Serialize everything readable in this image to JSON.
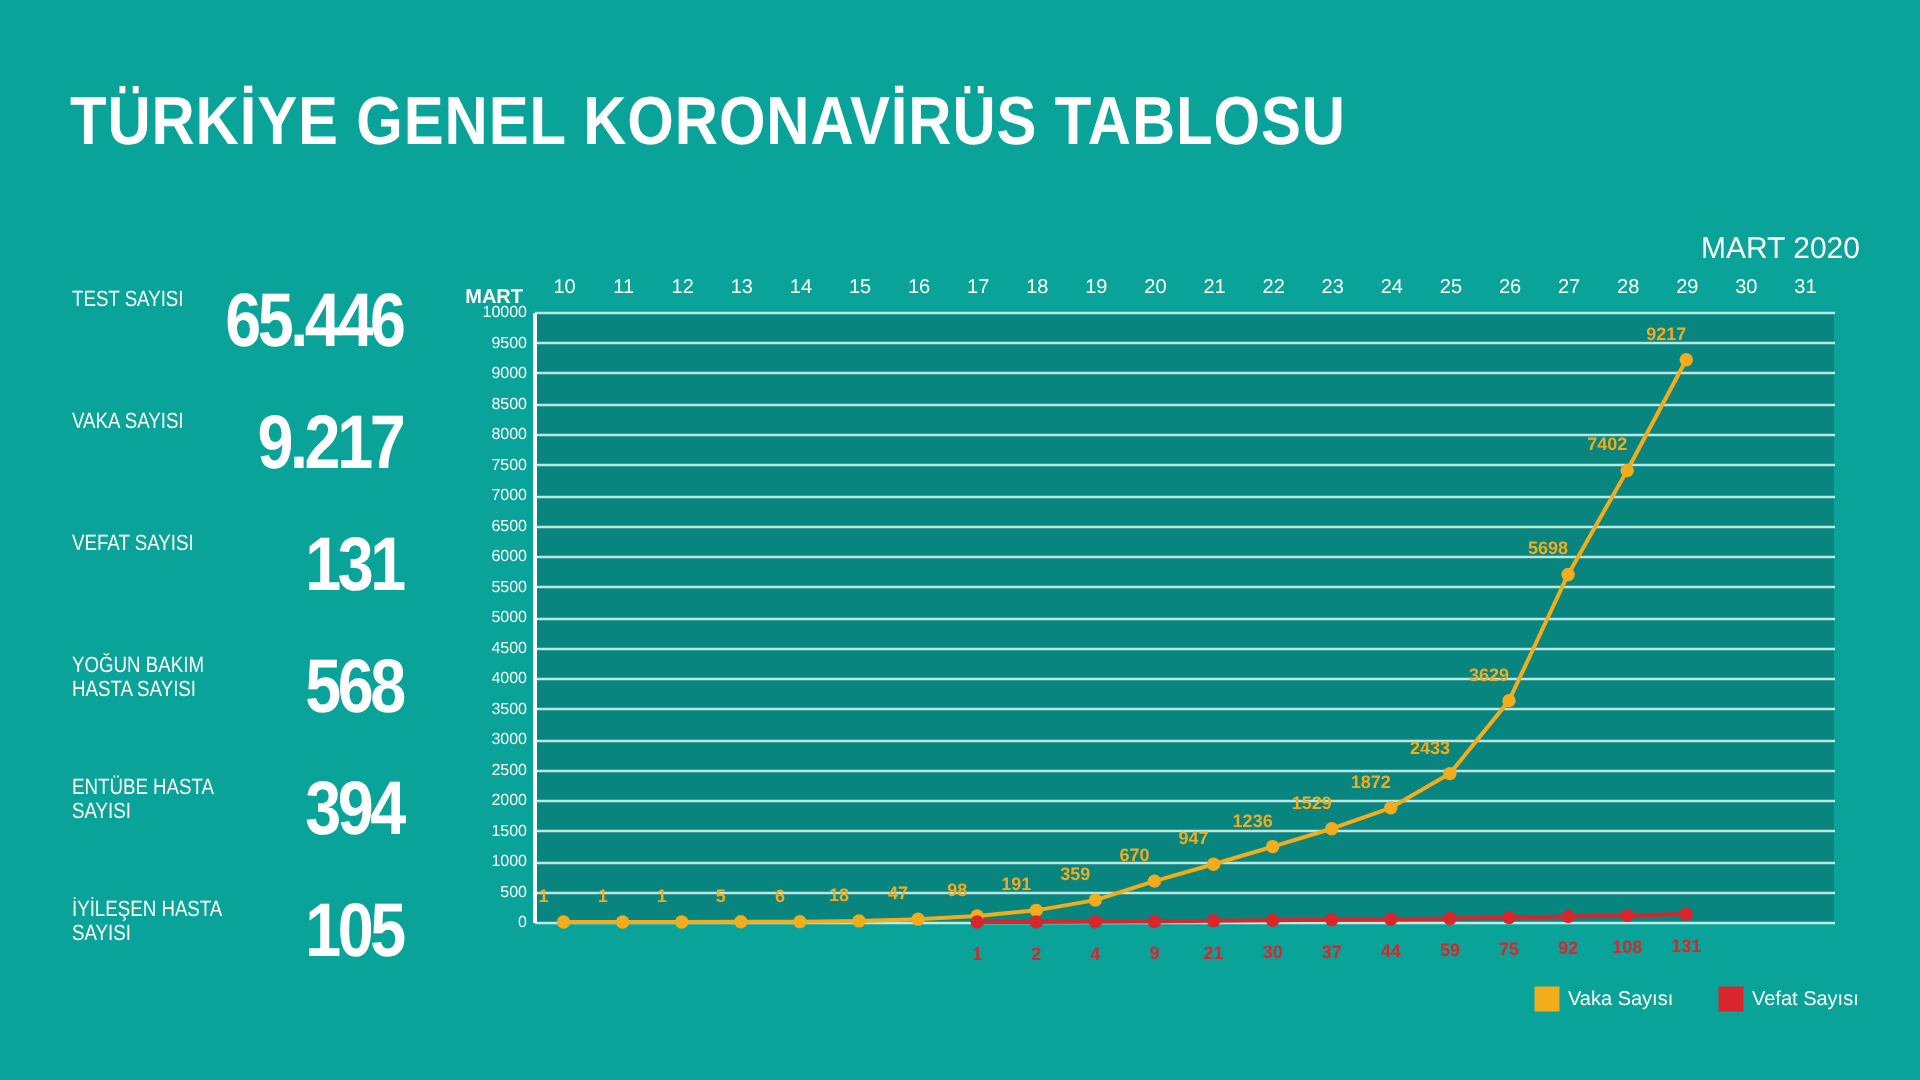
{
  "chart_data": [
    {
      "type": "other",
      "title": "TÜRKİYE GENEL KORONAVİRÜS TABLOSU",
      "annotations": [
        "TEST SAYISI",
        "65.446",
        "VAKA SAYISI",
        "9.217",
        "VEFAT SAYISI",
        "131",
        "YOĞUN BAKIM HASTA SAYISI",
        "568",
        "ENTÜBE HASTA SAYISI",
        "394",
        "İYİLEŞEN HASTA SAYISI",
        "105"
      ]
    },
    {
      "type": "line",
      "subtitle": "MART 2020",
      "xlabel": "MART",
      "categories": [
        "10",
        "11",
        "12",
        "13",
        "14",
        "15",
        "16",
        "17",
        "18",
        "19",
        "20",
        "21",
        "22",
        "23",
        "24",
        "25",
        "26",
        "27",
        "28",
        "29",
        "30",
        "31"
      ],
      "series": [
        {
          "name": "Vaka Sayısı",
          "color": "#f2ac1c",
          "values": [
            1,
            1,
            1,
            5,
            6,
            18,
            47,
            98,
            191,
            359,
            670,
            947,
            1236,
            1529,
            1872,
            2433,
            3629,
            5698,
            7402,
            9217,
            null,
            null
          ]
        },
        {
          "name": "Vefat Sayısı",
          "color": "#d9262c",
          "values": [
            null,
            null,
            null,
            null,
            null,
            null,
            null,
            1,
            2,
            4,
            9,
            21,
            30,
            37,
            44,
            59,
            75,
            92,
            108,
            131,
            null,
            null
          ]
        }
      ],
      "ylim": [
        0,
        10000
      ],
      "yticks": [
        0,
        500,
        1000,
        1500,
        2000,
        2500,
        3000,
        3500,
        4000,
        4500,
        5000,
        5500,
        6000,
        6500,
        7000,
        7500,
        8000,
        8500,
        9000,
        9500,
        10000
      ],
      "grid": "y",
      "legend": "bottom right",
      "marker": "circle",
      "line_style": "solid",
      "data_labels": true
    }
  ]
}
